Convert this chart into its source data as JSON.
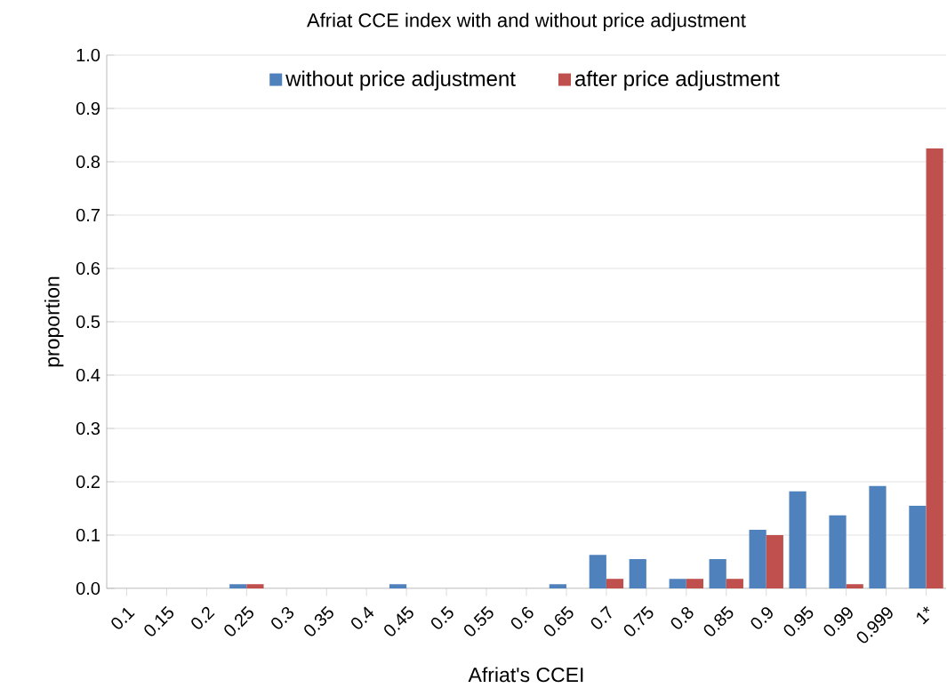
{
  "chart_data": {
    "type": "bar",
    "title": "Afriat CCE index with and without price adjustment",
    "xlabel": "Afriat's CCEI",
    "ylabel": "proportion",
    "categories": [
      "0.1",
      "0.15",
      "0.2",
      "0.25",
      "0.3",
      "0.35",
      "0.4",
      "0.45",
      "0.5",
      "0.55",
      "0.6",
      "0.65",
      "0.7",
      "0.75",
      "0.8",
      "0.85",
      "0.9",
      "0.95",
      "0.99",
      "0.999",
      "1*"
    ],
    "series": [
      {
        "name": "without price adjustment",
        "color": "#4f81bd",
        "values": [
          0,
          0,
          0,
          0.008,
          0,
          0,
          0,
          0.008,
          0,
          0,
          0,
          0.008,
          0.063,
          0.055,
          0.018,
          0.055,
          0.11,
          0.182,
          0.137,
          0.192,
          0.155
        ]
      },
      {
        "name": "after price adjustment",
        "color": "#c0504d",
        "values": [
          0,
          0,
          0,
          0.008,
          0,
          0,
          0,
          0,
          0,
          0,
          0,
          0,
          0.018,
          0,
          0.018,
          0.018,
          0.1,
          0,
          0.008,
          0,
          0.825
        ]
      }
    ],
    "ylim": [
      0,
      1
    ],
    "yticks": [
      {
        "value": 0,
        "label": "0.0"
      },
      0.1,
      0.2,
      0.3,
      0.4,
      0.5,
      0.6,
      0.7,
      0.8,
      0.9,
      {
        "value": 1,
        "label": "1.0"
      }
    ],
    "grid": "y",
    "legend": "top"
  }
}
